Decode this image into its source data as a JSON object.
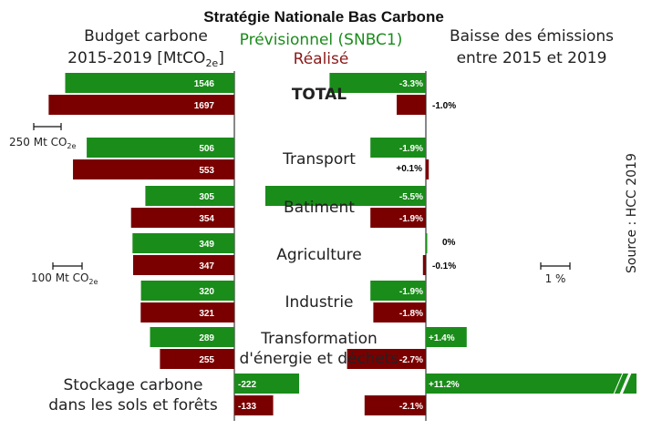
{
  "title": "Stratégie Nationale Bas Carbone",
  "legend": {
    "planned": "Prévisionnel (SNBC1)",
    "actual": "Réalisé"
  },
  "left_header": {
    "line1": "Budget carbone",
    "line2_prefix": "2015-2019 [MtCO",
    "line2_sub": "2e",
    "line2_suffix": "]"
  },
  "right_header": {
    "line1": "Baisse des émissions",
    "line2": "entre 2015 et 2019"
  },
  "source": "Source : HCC 2019",
  "scales": {
    "total": {
      "prefix": "250 Mt CO",
      "sub": "2e"
    },
    "sectors": {
      "prefix": "100 Mt CO",
      "sub": "2e"
    },
    "pct": {
      "label": "1 %"
    }
  },
  "colors": {
    "planned": "#1a8c1a",
    "actual": "#7a0000",
    "text": "#222222",
    "planned_text": "#1a8c1a",
    "actual_text": "#8b1a1a"
  },
  "chart_data": {
    "type": "bar",
    "title": "Stratégie Nationale Bas Carbone",
    "series": [
      {
        "name": "Prévisionnel (SNBC1)",
        "budget": [
          1546,
          506,
          305,
          349,
          320,
          289,
          -222
        ],
        "change_pct": [
          -3.3,
          -1.9,
          -5.5,
          0,
          -1.9,
          1.4,
          11.2
        ]
      },
      {
        "name": "Réalisé",
        "budget": [
          1697,
          553,
          354,
          347,
          321,
          255,
          -133
        ],
        "change_pct": [
          -1.0,
          0.1,
          -1.9,
          -0.1,
          -1.8,
          -2.7,
          -2.1
        ]
      }
    ],
    "categories": [
      {
        "name": "TOTAL",
        "lines": [
          "TOTAL"
        ],
        "bold": true,
        "budget_scale": "total",
        "planned": {
          "budget": 1546,
          "budget_label": "1546",
          "change": -3.3,
          "change_label": "-3.3%"
        },
        "actual": {
          "budget": 1697,
          "budget_label": "1697",
          "change": -1.0,
          "change_label": "-1.0%"
        }
      },
      {
        "name": "Transport",
        "lines": [
          "Transport"
        ],
        "bold": false,
        "budget_scale": "sectors",
        "planned": {
          "budget": 506,
          "budget_label": "506",
          "change": -1.9,
          "change_label": "-1.9%"
        },
        "actual": {
          "budget": 553,
          "budget_label": "553",
          "change": 0.1,
          "change_label": "+0.1%"
        }
      },
      {
        "name": "Batiment",
        "lines": [
          "Batiment"
        ],
        "bold": false,
        "budget_scale": "sectors",
        "planned": {
          "budget": 305,
          "budget_label": "305",
          "change": -5.5,
          "change_label": "-5.5%"
        },
        "actual": {
          "budget": 354,
          "budget_label": "354",
          "change": -1.9,
          "change_label": "-1.9%"
        }
      },
      {
        "name": "Agriculture",
        "lines": [
          "Agriculture"
        ],
        "bold": false,
        "budget_scale": "sectors",
        "planned": {
          "budget": 349,
          "budget_label": "349",
          "change": 0,
          "change_label": "0%"
        },
        "actual": {
          "budget": 347,
          "budget_label": "347",
          "change": -0.1,
          "change_label": "-0.1%"
        }
      },
      {
        "name": "Industrie",
        "lines": [
          "Industrie"
        ],
        "bold": false,
        "budget_scale": "sectors",
        "planned": {
          "budget": 320,
          "budget_label": "320",
          "change": -1.9,
          "change_label": "-1.9%"
        },
        "actual": {
          "budget": 321,
          "budget_label": "321",
          "change": -1.8,
          "change_label": "-1.8%"
        }
      },
      {
        "name": "Transformation d'énergie et déchets",
        "lines": [
          "Transformation",
          "d'énergie et déchets"
        ],
        "bold": false,
        "budget_scale": "sectors",
        "planned": {
          "budget": 289,
          "budget_label": "289",
          "change": 1.4,
          "change_label": "+1.4%"
        },
        "actual": {
          "budget": 255,
          "budget_label": "255",
          "change": -2.7,
          "change_label": "-2.7%"
        }
      },
      {
        "name": "Stockage carbone dans les sols et forêts",
        "lines": [
          "Stockage carbone",
          "dans les sols et forêts"
        ],
        "bold": false,
        "budget_scale": "sectors",
        "label_side": "left",
        "planned": {
          "budget": -222,
          "budget_label": "-222",
          "change": 11.2,
          "change_label": "+11.2%",
          "truncated": true
        },
        "actual": {
          "budget": -133,
          "budget_label": "-133",
          "change": -2.1,
          "change_label": "-2.1%"
        }
      }
    ]
  }
}
